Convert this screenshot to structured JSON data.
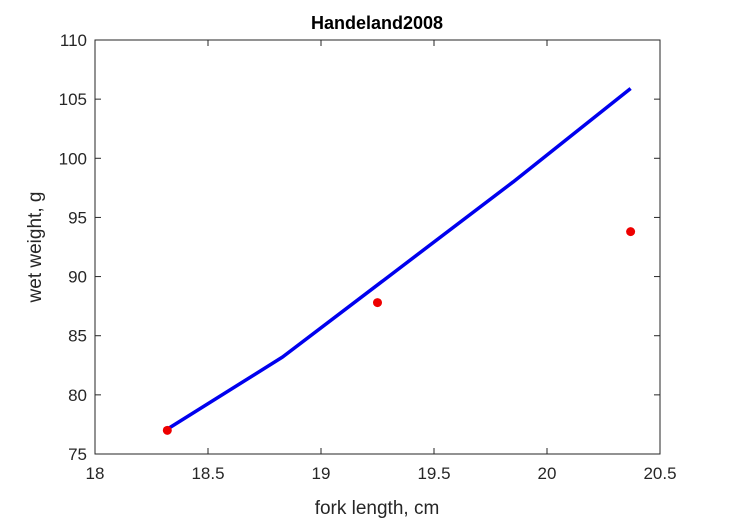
{
  "chart_data": {
    "type": "line",
    "title": "Handeland2008",
    "xlabel": "fork length, cm",
    "ylabel": "wet weight, g",
    "xlim": [
      18,
      20.5
    ],
    "ylim": [
      75,
      110
    ],
    "xticks": [
      18,
      18.5,
      19,
      19.5,
      20,
      20.5
    ],
    "xtick_labels": [
      "18",
      "18.5",
      "19",
      "19.5",
      "20",
      "20.5"
    ],
    "yticks": [
      75,
      80,
      85,
      90,
      95,
      100,
      105,
      110
    ],
    "ytick_labels": [
      "75",
      "80",
      "85",
      "90",
      "95",
      "100",
      "105",
      "110"
    ],
    "grid": false,
    "legend": "none",
    "series": [
      {
        "kind": "line",
        "color": "#0000ee",
        "x": [
          18.32,
          18.83,
          19.34,
          19.85,
          20.37
        ],
        "y": [
          77.1,
          83.2,
          90.6,
          98.0,
          105.9
        ]
      },
      {
        "kind": "scatter",
        "color": "#ee0000",
        "x": [
          18.32,
          19.25,
          20.37
        ],
        "y": [
          77.0,
          87.8,
          93.8
        ]
      }
    ]
  }
}
